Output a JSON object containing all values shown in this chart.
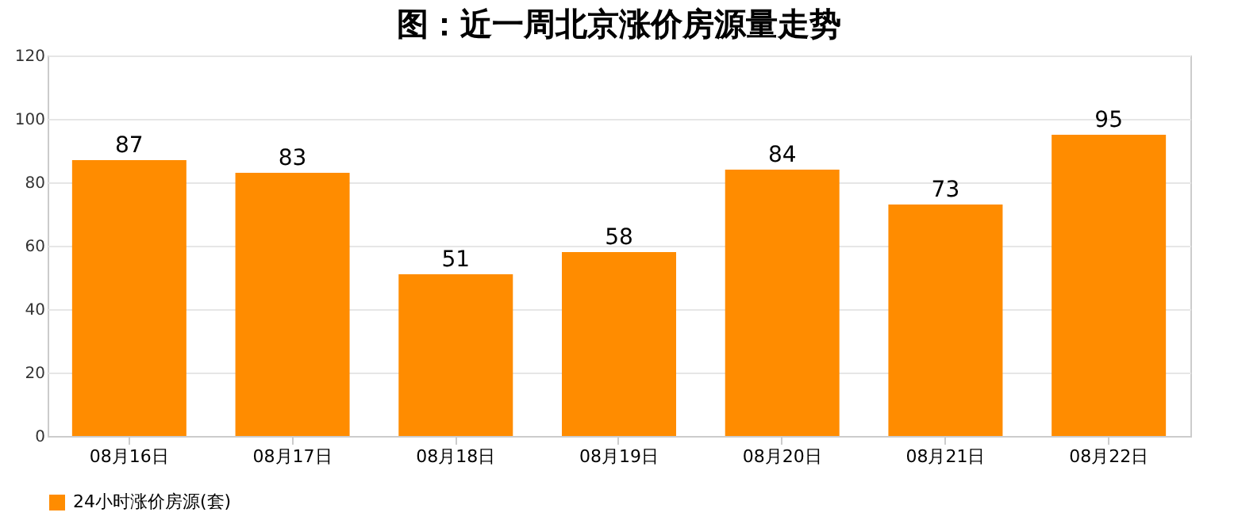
{
  "chart_data": {
    "type": "bar",
    "title": "图：近一周北京涨价房源量走势",
    "categories": [
      "08月16日",
      "08月17日",
      "08月18日",
      "08月19日",
      "08月20日",
      "08月21日",
      "08月22日"
    ],
    "series": [
      {
        "name": "24小时涨价房源(套)",
        "color": "#ff8c00",
        "values": [
          87,
          83,
          51,
          58,
          84,
          73,
          95
        ]
      }
    ],
    "ylim": [
      0,
      120
    ],
    "yticks": [
      0,
      20,
      40,
      60,
      80,
      100,
      120
    ],
    "grid": "y",
    "legend": "bottom",
    "data_labels": true
  }
}
